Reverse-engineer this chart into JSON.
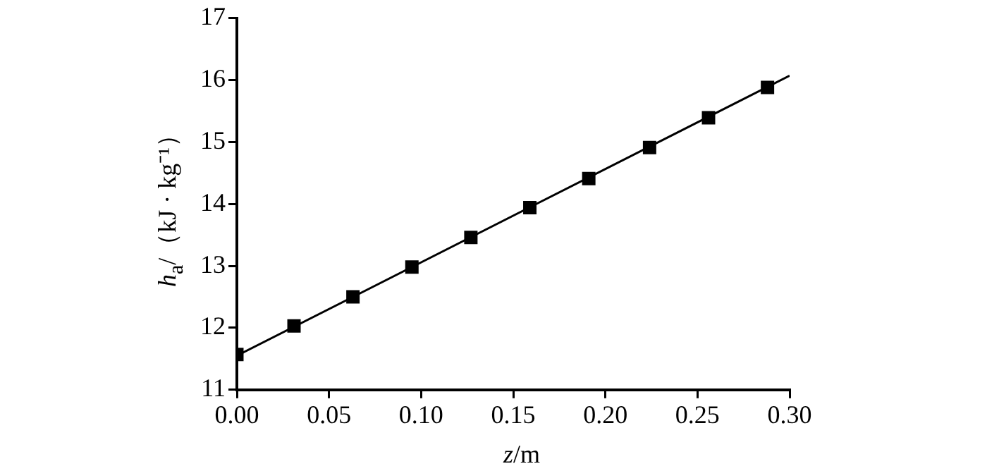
{
  "chart_data": {
    "type": "scatter",
    "xlabel": "z/m",
    "ylabel": "h$_{a}$/（kJ · kg⁻¹）",
    "xlim": [
      0,
      0.3
    ],
    "xticks": [
      {
        "value": 0,
        "label": "0.00"
      },
      {
        "value": 0.05,
        "label": "0.05"
      },
      {
        "value": 0.1,
        "label": "0.10"
      },
      {
        "value": 0.15,
        "label": "0.15"
      },
      {
        "value": 0.2,
        "label": "0.20"
      },
      {
        "value": 0.25,
        "label": "0.25"
      },
      {
        "value": 0.3,
        "label": "0.30"
      }
    ],
    "ylim": [
      11,
      17
    ],
    "yticks": [
      11,
      12,
      13,
      14,
      15,
      16,
      17
    ],
    "series": [
      {
        "marker": "square",
        "color": "#000000",
        "x": [
          0,
          0.031,
          0.063,
          0.095,
          0.127,
          0.159,
          0.191,
          0.224,
          0.256,
          0.288
        ],
        "values": [
          11.57,
          12.03,
          12.5,
          12.98,
          13.46,
          13.94,
          14.41,
          14.91,
          15.39,
          15.88
        ]
      },
      {
        "type": "line",
        "marker": "none",
        "color": "#000000",
        "x": [
          0,
          0.3
        ],
        "values": [
          11.55,
          16.07
        ]
      }
    ]
  }
}
